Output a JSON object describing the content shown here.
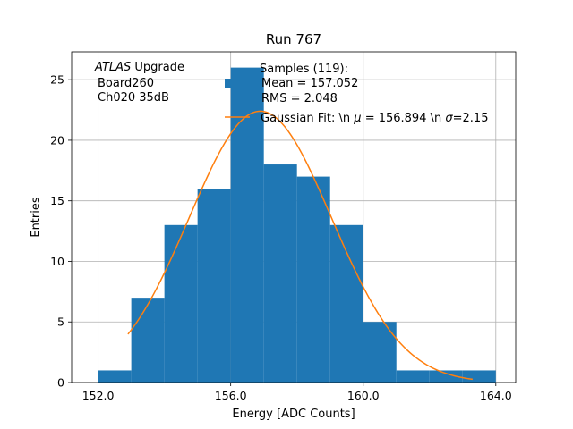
{
  "chart_data": {
    "type": "bar",
    "title": "Run 767",
    "xlabel": "Energy [ADC Counts]",
    "ylabel": "Entries",
    "xlim": [
      151.2,
      164.6
    ],
    "ylim": [
      0,
      27.3
    ],
    "xticks": [
      152.0,
      156.0,
      160.0,
      164.0
    ],
    "xtick_labels": [
      "152.0",
      "156.0",
      "160.0",
      "164.0"
    ],
    "yticks": [
      0,
      5,
      10,
      15,
      20,
      25
    ],
    "ytick_labels": [
      "0",
      "5",
      "10",
      "15",
      "20",
      "25"
    ],
    "grid": true,
    "bar_color": "#1f77b4",
    "fit_color": "#ff7f0e",
    "histogram": {
      "bin_edges": [
        152.0,
        153.0,
        154.0,
        155.0,
        156.0,
        157.0,
        158.0,
        159.0,
        160.0,
        161.0,
        162.0,
        163.0,
        164.0
      ],
      "counts": [
        1,
        7,
        13,
        16,
        26,
        18,
        17,
        13,
        5,
        1,
        1,
        1
      ]
    },
    "fit": {
      "x_start": 152.9,
      "x_end": 163.3,
      "mu": 156.894,
      "sigma": 2.15,
      "amplitude": 22.4
    },
    "annotation": {
      "experiment": "ATLAS",
      "experiment_suffix": " Upgrade",
      "line2": "Board260",
      "line3": "Ch020 35dB"
    },
    "legend": {
      "placement": "top-right",
      "samples_line1": "Samples (119):",
      "samples_line2": "Mean = 157.052",
      "samples_line3": "RMS = 2.048",
      "fit_prefix": "Gaussian Fit: \\n ",
      "fit_mu_symbol": "μ",
      "fit_mu_value": " = 156.894 \\n ",
      "fit_sigma_symbol": "σ",
      "fit_sigma_value": "=2.15"
    }
  }
}
